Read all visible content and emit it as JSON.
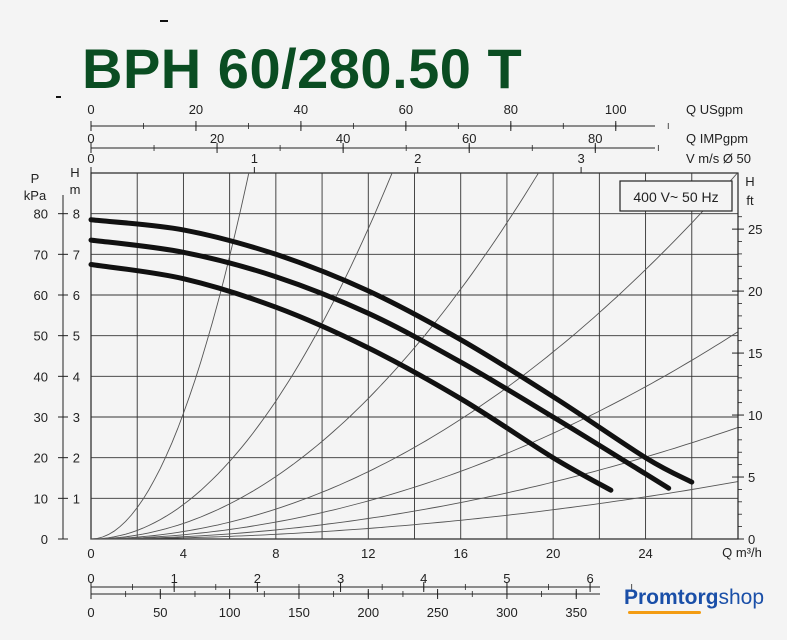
{
  "title": "BPH 60/280.50 T",
  "brand": {
    "part1": "Promtorg",
    "part2": "shop"
  },
  "chart_data": {
    "type": "line",
    "legend_box": "400 V~ 50 Hz",
    "x_main": {
      "label": "Q m³/h",
      "ticks": [
        0,
        4,
        8,
        12,
        16,
        20,
        24
      ],
      "range": [
        0,
        28
      ]
    },
    "y_main": {
      "unit_top": "H",
      "unit_bottom": "m",
      "ticks": [
        0,
        1,
        2,
        3,
        4,
        5,
        6,
        7,
        8
      ],
      "range": [
        0,
        9
      ]
    },
    "y_left_kpa": {
      "label_top": "P",
      "label_bottom": "kPa",
      "ticks": [
        0,
        10,
        20,
        30,
        40,
        50,
        60,
        70,
        80
      ],
      "range": [
        0,
        90
      ]
    },
    "y_right_ft": {
      "label_top": "H",
      "label_bottom": "ft",
      "ticks": [
        0,
        5,
        10,
        15,
        20,
        25
      ]
    },
    "top_axes": [
      {
        "label": "Q USgpm",
        "ticks": [
          0,
          20,
          40,
          60,
          80,
          100
        ]
      },
      {
        "label": "Q IMPgpm",
        "ticks": [
          0,
          20,
          40,
          60,
          80
        ]
      },
      {
        "label": "V m/s Ø 50",
        "ticks": [
          0,
          1,
          2,
          3
        ]
      }
    ],
    "bottom_axes": [
      {
        "label": "",
        "ticks": [
          0,
          1,
          2,
          3,
          4,
          5,
          6
        ]
      },
      {
        "label": "",
        "ticks": [
          0,
          50,
          100,
          150,
          200,
          250,
          300,
          350
        ]
      }
    ],
    "grid": true,
    "series": [
      {
        "x": [
          0,
          4,
          8,
          12,
          16,
          20,
          24,
          26
        ],
        "y": [
          7.85,
          7.6,
          7.0,
          6.1,
          4.9,
          3.5,
          2.0,
          1.4
        ]
      },
      {
        "x": [
          0,
          4,
          8,
          12,
          16,
          20,
          24,
          25
        ],
        "y": [
          7.35,
          7.05,
          6.45,
          5.55,
          4.35,
          3.0,
          1.6,
          1.25
        ]
      },
      {
        "x": [
          0,
          4,
          8,
          12,
          16,
          20,
          22.5
        ],
        "y": [
          6.75,
          6.4,
          5.7,
          4.7,
          3.45,
          2.0,
          1.2
        ]
      }
    ],
    "system_curves": [
      {
        "label": "",
        "k": 0.193
      },
      {
        "label": "",
        "k": 0.053
      },
      {
        "label": "",
        "k": 0.024
      },
      {
        "label": "",
        "k": 0.0115
      },
      {
        "label": "",
        "k": 0.0065
      },
      {
        "label": "",
        "k": 0.0035
      },
      {
        "label": "",
        "k": 0.0018
      }
    ]
  }
}
